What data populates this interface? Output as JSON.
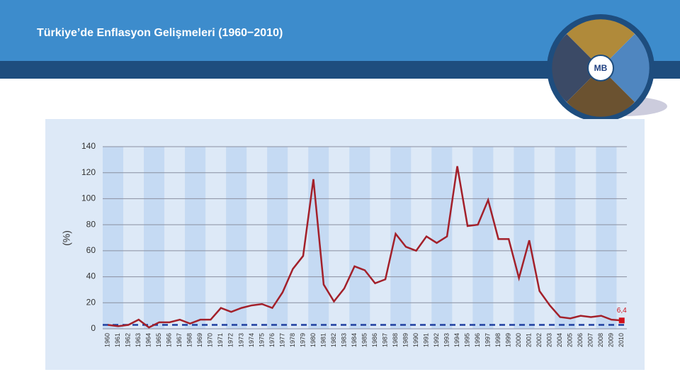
{
  "header": {
    "title": "Türkiye’de Enflasyon Gelişmeleri (1960−2010)",
    "logo": "MB"
  },
  "chart_data": {
    "type": "line",
    "y_label": "(%)",
    "categories": [
      "1960",
      "1961",
      "1962",
      "1963",
      "1964",
      "1965",
      "1966",
      "1967",
      "1968",
      "1969",
      "1970",
      "1971",
      "1972",
      "1973",
      "1974",
      "1975",
      "1976",
      "1977",
      "1978",
      "1979",
      "1980",
      "1981",
      "1982",
      "1983",
      "1984",
      "1985",
      "1986",
      "1987",
      "1988",
      "1989",
      "1990",
      "1991",
      "1992",
      "1993",
      "1994",
      "1995",
      "1996",
      "1997",
      "1998",
      "1999",
      "2000",
      "2001",
      "2002",
      "2003",
      "2004",
      "2005",
      "2006",
      "2007",
      "2008",
      "2009",
      "2010"
    ],
    "series": [
      {
        "color": "#a3202a",
        "values": [
          3,
          2,
          3,
          7,
          1,
          5,
          5,
          7,
          4,
          7,
          7,
          16,
          13,
          16,
          18,
          19,
          16,
          28,
          46,
          56,
          115,
          34,
          21,
          31,
          48,
          45,
          35,
          38,
          73,
          63,
          60,
          71,
          66,
          71,
          125,
          79,
          80,
          99,
          69,
          69,
          39,
          68,
          29,
          18,
          9,
          8,
          10,
          9,
          10,
          7,
          6.4
        ],
        "value_labels": [
          null,
          null,
          null,
          null,
          null,
          null,
          null,
          null,
          null,
          null,
          null,
          null,
          null,
          null,
          null,
          null,
          null,
          null,
          null,
          null,
          null,
          null,
          null,
          null,
          null,
          null,
          null,
          null,
          null,
          null,
          null,
          null,
          null,
          null,
          null,
          null,
          null,
          null,
          null,
          null,
          null,
          null,
          null,
          null,
          null,
          null,
          null,
          null,
          null,
          null,
          "6,4"
        ]
      }
    ],
    "hline": 3,
    "hline_color": "#1f3fa0",
    "ylim": [
      0,
      140
    ],
    "yticks": [
      0,
      20,
      40,
      60,
      80,
      100,
      120,
      140
    ],
    "grid": true
  }
}
